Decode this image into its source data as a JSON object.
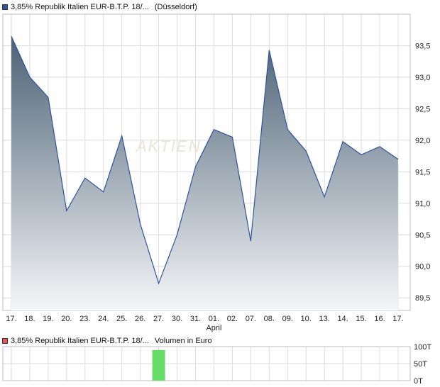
{
  "legend_main": {
    "label": "3,85% Republik Italien EUR-B.T.P. 18/...",
    "exchange": "(Düsseldorf)",
    "color": "#2d54a3"
  },
  "legend_volume": {
    "label": "3,85% Republik Italien EUR-B.T.P. 18/...",
    "unit": "Volumen in Euro",
    "color": "#e05a5a"
  },
  "watermark": "AKTIEN",
  "chart_data": [
    {
      "type": "area",
      "categories": [
        "17.",
        "18.",
        "19.",
        "20.",
        "23.",
        "24.",
        "25.",
        "26.",
        "27.",
        "30.",
        "31.",
        "01.",
        "02.",
        "07.",
        "08.",
        "09.",
        "10.",
        "13.",
        "14.",
        "15.",
        "16.",
        "17."
      ],
      "x_sublabels": {
        "11": "April"
      },
      "values": [
        93.65,
        93.0,
        92.68,
        90.88,
        91.4,
        91.18,
        92.07,
        90.67,
        89.73,
        90.5,
        91.58,
        92.17,
        92.05,
        90.4,
        93.43,
        92.17,
        91.83,
        91.1,
        91.98,
        91.77,
        91.9,
        91.7
      ],
      "yticks": [
        89.5,
        90.0,
        90.5,
        91.0,
        91.5,
        92.0,
        92.5,
        93.0,
        93.5
      ],
      "ytick_labels": [
        "89,5",
        "90,0",
        "90,5",
        "91,0",
        "91,5",
        "92,0",
        "92,5",
        "93,0",
        "93,5"
      ],
      "ylim": [
        89.3,
        94.0
      ],
      "line_color": "#2d54a3",
      "fill_top_color": "#4c6275",
      "fill_bottom_color": "#f5f6f8",
      "grid": true
    },
    {
      "type": "bar",
      "values": [
        0,
        0,
        0,
        0,
        0,
        0,
        0,
        0,
        90,
        0,
        0,
        0,
        0,
        0,
        0,
        0,
        0,
        0,
        0,
        0,
        0,
        0
      ],
      "yticks": [
        0,
        50,
        100
      ],
      "ytick_labels": [
        "0T",
        "50T",
        "100T"
      ],
      "ylim": [
        0,
        100
      ],
      "bar_color": "#66dd66",
      "grid": true
    }
  ]
}
